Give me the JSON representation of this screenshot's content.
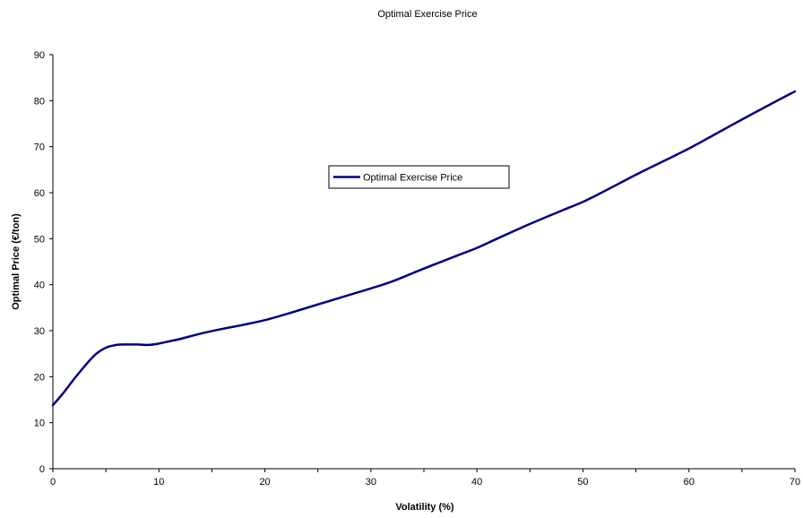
{
  "chart_data": {
    "type": "line",
    "title": "Optimal Exercise Price",
    "xlabel": "Volatility (%)",
    "ylabel": "Optimal Price (€/ton)",
    "xlim": [
      0,
      70
    ],
    "ylim": [
      0,
      90
    ],
    "x_ticks": [
      0,
      10,
      20,
      30,
      40,
      50,
      60,
      70
    ],
    "y_ticks": [
      0,
      10,
      20,
      30,
      40,
      50,
      60,
      70,
      80,
      90
    ],
    "grid": false,
    "legend_position": "center",
    "series": [
      {
        "name": "Optimal Exercise Price",
        "color": "#000080",
        "x": [
          0,
          1,
          2,
          3,
          4,
          5,
          6,
          7,
          8,
          9,
          10,
          11,
          12,
          14,
          16,
          18,
          20,
          22,
          25,
          28,
          30,
          32,
          35,
          38,
          40,
          42,
          45,
          48,
          50,
          52,
          55,
          58,
          60,
          62,
          65,
          68,
          70
        ],
        "y": [
          13.8,
          16.5,
          19.5,
          22.3,
          24.8,
          26.3,
          26.9,
          27.0,
          27.0,
          26.9,
          27.2,
          27.7,
          28.2,
          29.4,
          30.4,
          31.3,
          32.3,
          33.6,
          35.7,
          37.8,
          39.2,
          40.7,
          43.5,
          46.2,
          48.0,
          50.1,
          53.2,
          56.1,
          58.0,
          60.3,
          63.9,
          67.3,
          69.6,
          72.1,
          75.9,
          79.6,
          82.0
        ]
      }
    ]
  }
}
